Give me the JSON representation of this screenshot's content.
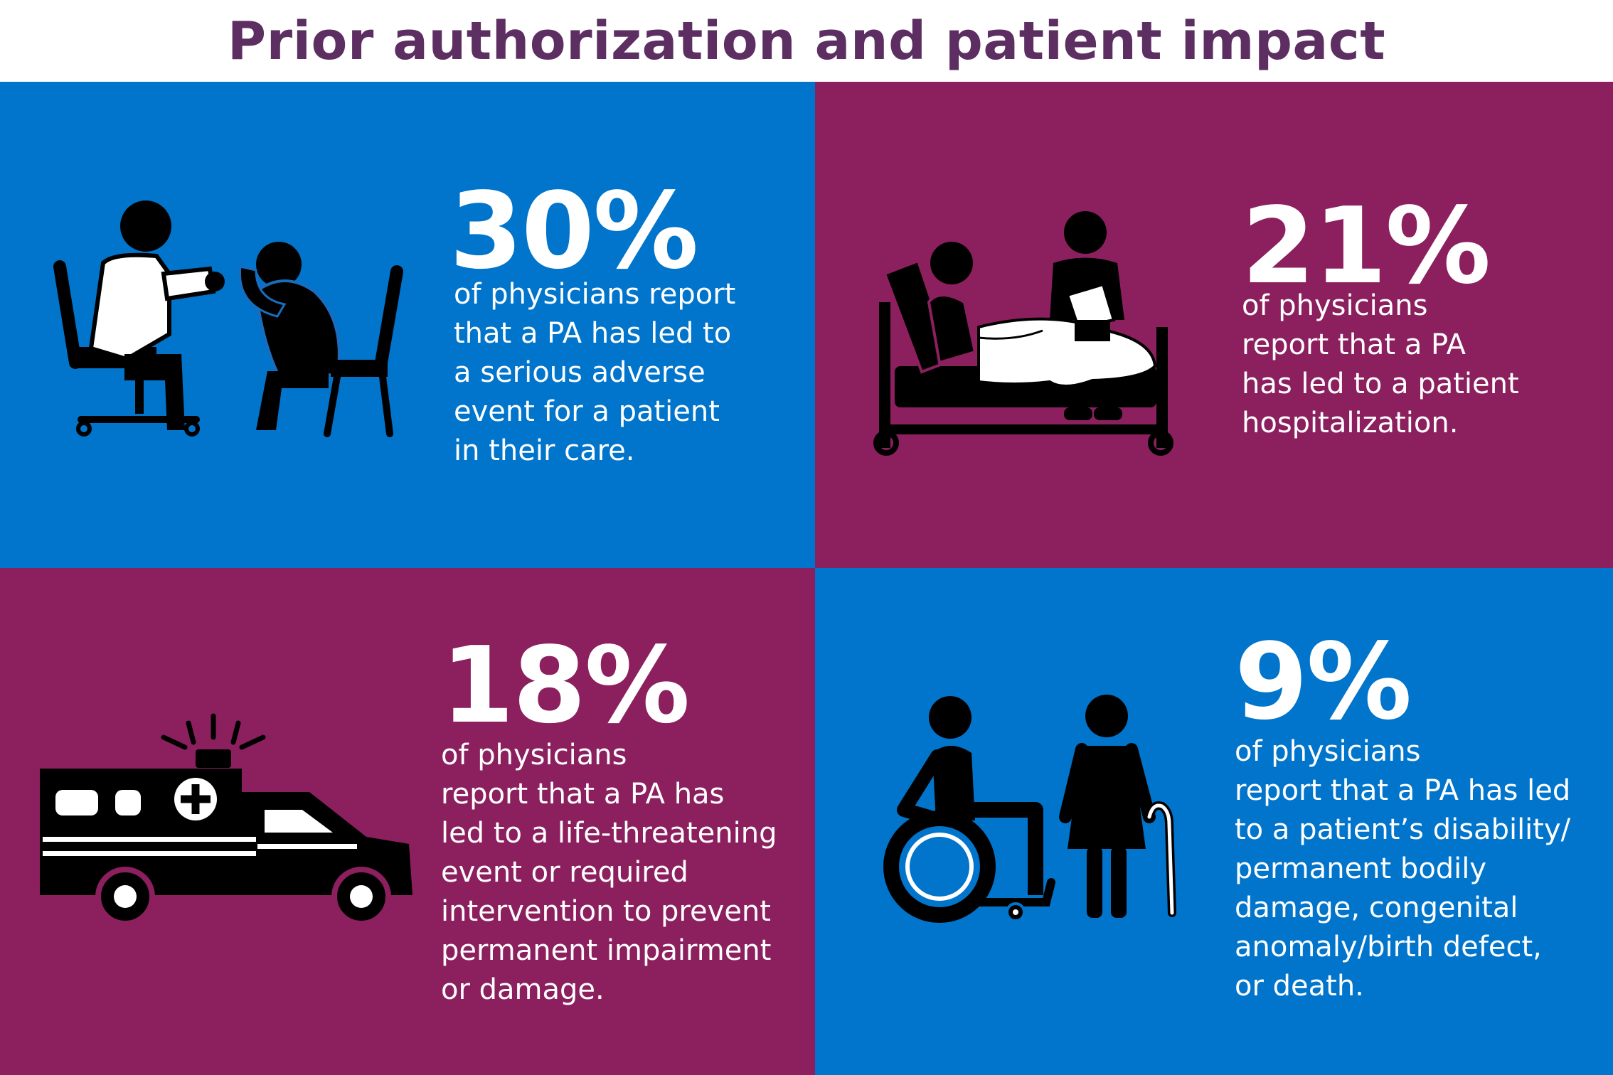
{
  "title": "Prior authorization and patient impact",
  "colors": {
    "blue": "#0174cb",
    "plum": "#8c1f5e",
    "title": "#5c2e61"
  },
  "stats": [
    {
      "id": "serious-adverse-event",
      "percent": "30%",
      "value": 30,
      "lines": [
        "of physicians report",
        "that a PA has led to",
        "a serious adverse",
        "event for a patient",
        "in their care."
      ],
      "icon": "doctor-consultation-icon"
    },
    {
      "id": "hospitalization",
      "percent": "21%",
      "value": 21,
      "lines": [
        "of physicians",
        "report that a PA",
        "has led to a patient",
        "hospitalization."
      ],
      "icon": "hospital-bed-icon"
    },
    {
      "id": "life-threatening",
      "percent": "18%",
      "value": 18,
      "lines": [
        "of physicians",
        "report that a PA has",
        "led to a life-threatening",
        "event or required",
        "intervention to prevent",
        "permanent impairment",
        "or damage."
      ],
      "icon": "ambulance-icon"
    },
    {
      "id": "disability-or-death",
      "percent": "9%",
      "value": 9,
      "lines": [
        "of physicians",
        "report that a PA has led",
        "to a patient’s disability/",
        "permanent bodily",
        "damage, congenital",
        "anomaly/birth defect,",
        "or death."
      ],
      "icon": "wheelchair-and-cane-icon"
    }
  ]
}
